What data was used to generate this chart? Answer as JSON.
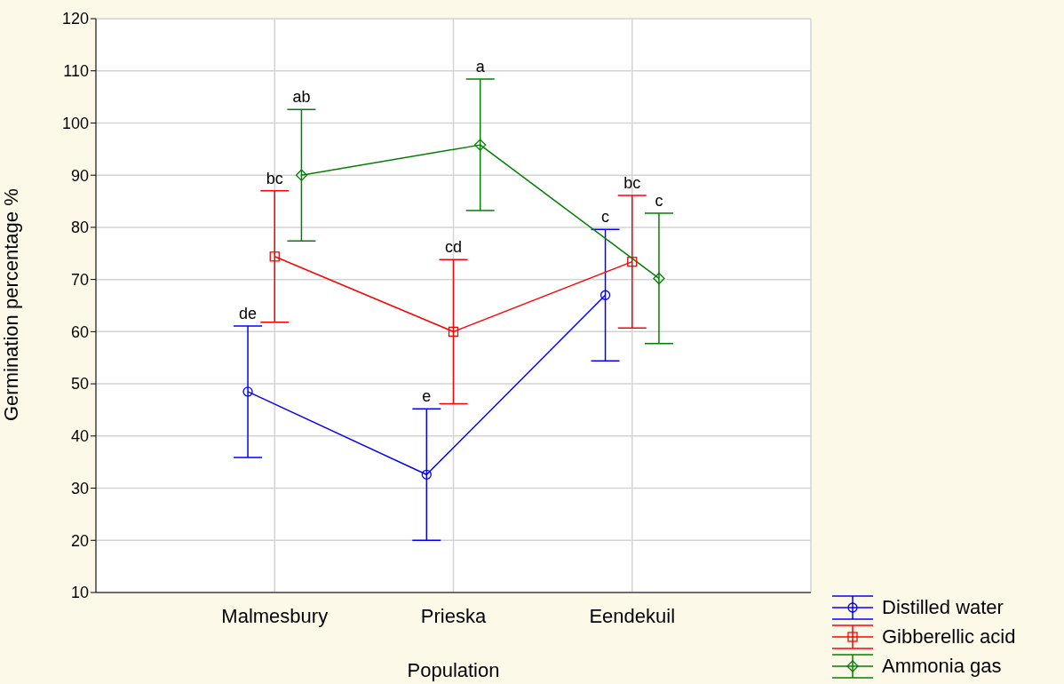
{
  "chart_data": {
    "type": "line",
    "xlabel": "Population",
    "ylabel": "Germination percentage %",
    "categories": [
      "Malmesbury",
      "Prieska",
      "Eendekuil"
    ],
    "ylim": [
      10,
      120
    ],
    "yticks": [
      10,
      20,
      30,
      40,
      50,
      60,
      70,
      80,
      90,
      100,
      110,
      120
    ],
    "grid": true,
    "legend": "bottom right",
    "series": [
      {
        "name": "Distilled water",
        "color": "#0000ff",
        "marker": "circle",
        "values": [
          48.5,
          32.6,
          67
        ],
        "errors": [
          12.6,
          12.6,
          12.6
        ]
      },
      {
        "name": "Gibberellic acid",
        "color": "#ff0000",
        "marker": "square",
        "values": [
          74.4,
          60,
          73.4
        ],
        "errors": [
          12.6,
          13.8,
          12.7
        ]
      },
      {
        "name": "Ammonia gas",
        "color": "#008000",
        "marker": "diamond",
        "values": [
          90,
          95.8,
          70.2
        ],
        "errors": [
          12.6,
          12.6,
          12.5
        ]
      }
    ],
    "annotations": [
      "de",
      "e",
      "c",
      "bc",
      "cd",
      "bc",
      "ab",
      "a",
      "c"
    ]
  }
}
